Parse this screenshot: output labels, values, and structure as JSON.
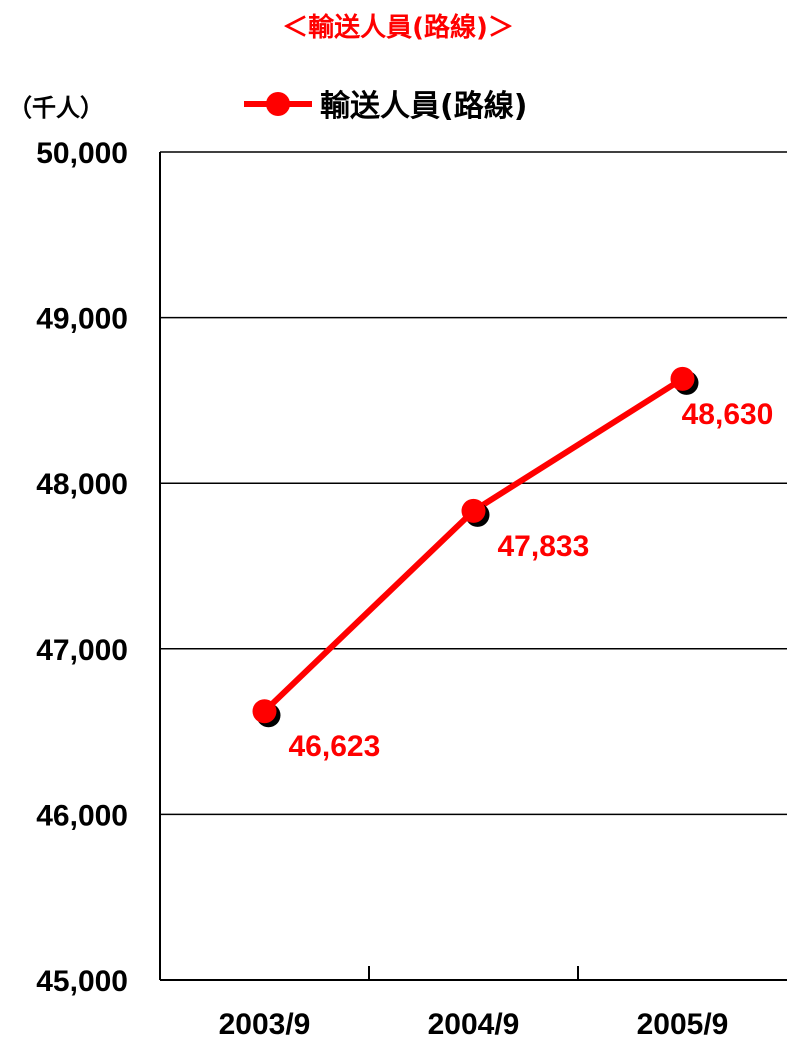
{
  "colors": {
    "series": "#ff0000",
    "title": "#ff0000",
    "text": "#000000",
    "grid": "#000000",
    "point_shadow": "#000000"
  },
  "chart_data": {
    "type": "line",
    "title": "＜輸送人員(路線)＞",
    "unit_label": "（千人）",
    "xlabel": "",
    "ylabel": "",
    "categories": [
      "2003/9",
      "2004/9",
      "2005/9"
    ],
    "series": [
      {
        "name": "輸送人員(路線)",
        "values": [
          46623,
          47833,
          48630
        ],
        "data_labels": [
          "46,623",
          "47,833",
          "48,630"
        ]
      }
    ],
    "ylim": [
      45000,
      50000
    ],
    "y_ticks": [
      45000,
      46000,
      47000,
      48000,
      49000,
      50000
    ],
    "y_tick_labels": [
      "45,000",
      "46,000",
      "47,000",
      "48,000",
      "49,000",
      "50,000"
    ],
    "grid": true,
    "legend_position": "top"
  }
}
